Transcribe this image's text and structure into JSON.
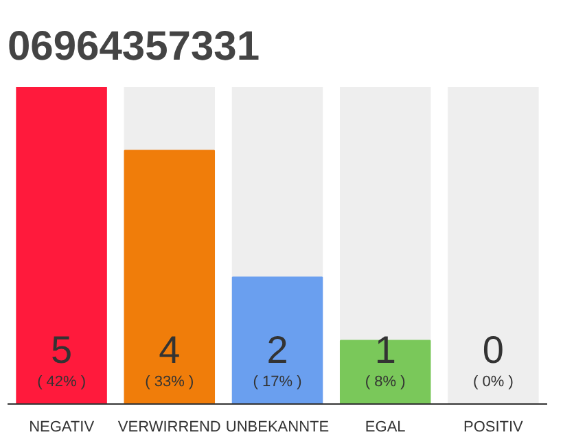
{
  "chart_data": {
    "type": "bar",
    "title": "06964357331",
    "categories": [
      "NEGATIV",
      "VERWIRREND",
      "UNBEKANNTE",
      "EGAL",
      "POSITIV"
    ],
    "values": [
      5,
      4,
      2,
      1,
      0
    ],
    "colors": [
      "#ff1a3c",
      "#f07d0a",
      "#6a9fef",
      "#7ac85a",
      "#cccccc"
    ],
    "value_labels": [
      "5\n( 42% )",
      "4\n( 33% )",
      "2\n( 17% )",
      "1\n( 8% )",
      "0\n( 0% )"
    ]
  }
}
